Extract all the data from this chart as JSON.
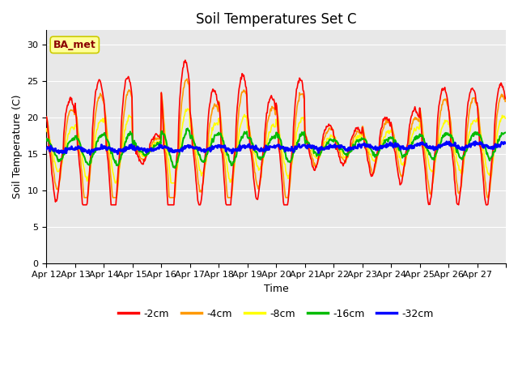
{
  "title": "Soil Temperatures Set C",
  "xlabel": "Time",
  "ylabel": "Soil Temperature (C)",
  "ylim": [
    0,
    32
  ],
  "yticks": [
    0,
    5,
    10,
    15,
    20,
    25,
    30
  ],
  "annotation": "BA_met",
  "annotation_color": "#8B0000",
  "annotation_bg": "#ffff99",
  "annotation_edge": "#cccc00",
  "bg_color": "#e8e8e8",
  "plot_bg": "#e8e8e8",
  "legend_labels": [
    "-2cm",
    "-4cm",
    "-8cm",
    "-16cm",
    "-32cm"
  ],
  "legend_colors": [
    "#ff0000",
    "#ff9900",
    "#ffff00",
    "#00bb00",
    "#0000ff"
  ],
  "x_tick_labels": [
    "Apr 12",
    "Apr 13",
    "Apr 14",
    "Apr 15",
    "Apr 16",
    "Apr 17",
    "Apr 18",
    "Apr 19",
    "Apr 20",
    "Apr 21",
    "Apr 22",
    "Apr 23",
    "Apr 24",
    "Apr 25",
    "Apr 26",
    "Apr 27"
  ],
  "n_days": 16,
  "points_per_day": 48,
  "title_fontsize": 12,
  "label_fontsize": 9,
  "tick_fontsize": 8,
  "grid_color": "#ffffff",
  "line_widths": [
    1.2,
    1.2,
    1.2,
    1.5,
    2.0
  ]
}
